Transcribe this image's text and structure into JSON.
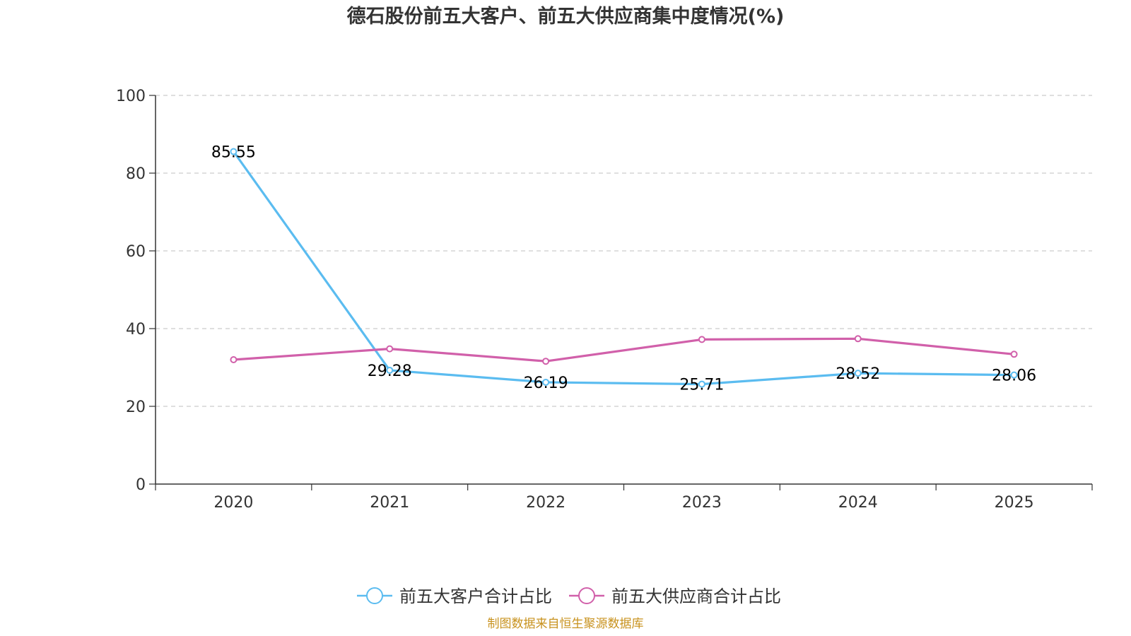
{
  "chart_data": {
    "type": "line",
    "title": "德石股份前五大客户、前五大供应商集中度情况(%)",
    "xlabel": "",
    "ylabel": "",
    "categories": [
      "2020",
      "2021",
      "2022",
      "2023",
      "2024",
      "2025"
    ],
    "ylim": [
      0,
      100
    ],
    "yticks": [
      "0",
      "20",
      "40",
      "60",
      "80",
      "100"
    ],
    "grid": true,
    "legend_position": "bottom",
    "series": [
      {
        "name": "前五大客户合计占比",
        "color": "#5bbcf0",
        "values": [
          85.55,
          29.28,
          26.19,
          25.71,
          28.52,
          28.06
        ],
        "labels": [
          "85.55",
          "29.28",
          "26.19",
          "25.71",
          "28.52",
          "28.06"
        ]
      },
      {
        "name": "前五大供应商合计占比",
        "color": "#d160aa",
        "values": [
          32.0,
          34.8,
          31.6,
          37.2,
          37.4,
          33.4
        ]
      }
    ],
    "source_note": "制图数据来自恒生聚源数据库",
    "source_color": "#c8921e"
  }
}
